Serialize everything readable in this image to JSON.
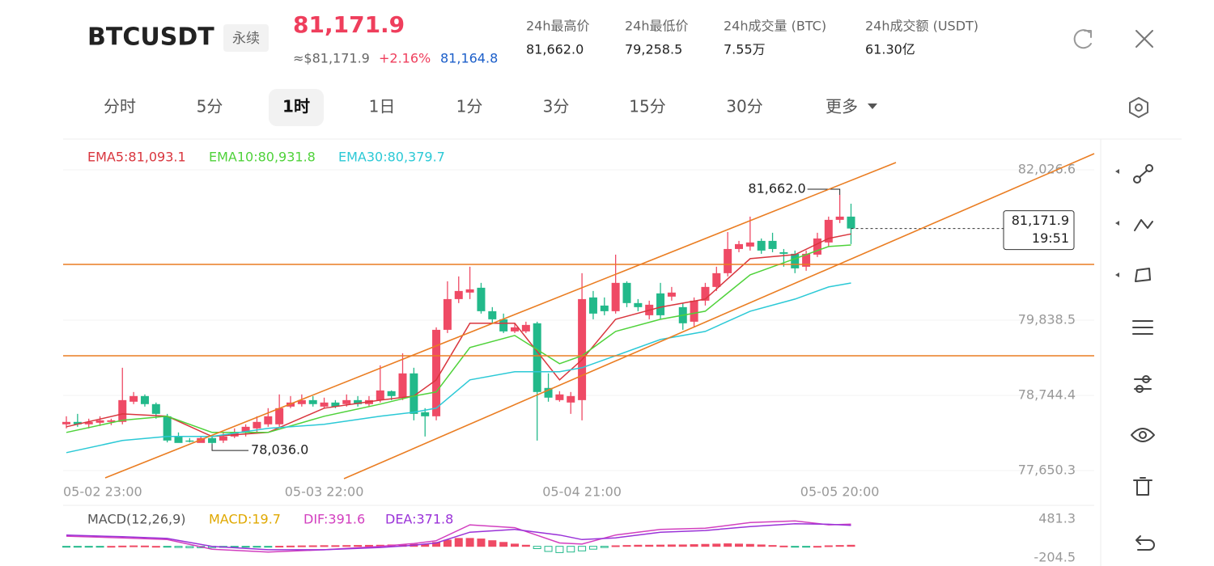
{
  "header": {
    "symbol": "BTCUSDT",
    "tag": "永续",
    "price": "81,171.9",
    "approx": "≈$81,171.9",
    "change": "+2.16%",
    "mark_price": "81,164.8",
    "stats": [
      {
        "label": "24h最高价",
        "value": "81,662.0"
      },
      {
        "label": "24h最低价",
        "value": "79,258.5"
      },
      {
        "label": "24h成交量 (BTC)",
        "value": "7.55万"
      },
      {
        "label": "24h成交额 (USDT)",
        "value": "61.30亿"
      }
    ]
  },
  "tabs": [
    {
      "label": "分时"
    },
    {
      "label": "5分"
    },
    {
      "label": "1时",
      "active": true
    },
    {
      "label": "1日"
    },
    {
      "label": "1分"
    },
    {
      "label": "3分"
    },
    {
      "label": "15分"
    },
    {
      "label": "30分"
    },
    {
      "label": "更多"
    }
  ],
  "chart_data": [
    {
      "type": "candlestick",
      "up_color": "#ef4a65",
      "down_color": "#22b98a",
      "categories": [
        "05-02 23:00",
        null,
        null,
        null,
        null,
        null,
        null,
        null,
        null,
        null,
        null,
        null,
        null,
        null,
        null,
        null,
        null,
        null,
        null,
        null,
        null,
        null,
        null,
        "05-03 22:00",
        null,
        null,
        null,
        null,
        null,
        null,
        null,
        null,
        null,
        null,
        null,
        null,
        null,
        null,
        null,
        null,
        null,
        null,
        null,
        null,
        null,
        null,
        "05-04 21:00",
        null,
        null,
        null,
        null,
        null,
        null,
        null,
        null,
        null,
        null,
        null,
        null,
        null,
        null,
        null,
        null,
        null,
        null,
        null,
        null,
        null,
        null,
        "05-05 20:00",
        null
      ],
      "open": [
        78323,
        78358,
        78323,
        78346,
        78358,
        78358,
        78652,
        78734,
        78617,
        78440,
        78146,
        78087,
        78052,
        78123,
        78087,
        78146,
        78205,
        78264,
        78323,
        78323,
        78581,
        78617,
        78675,
        78581,
        78640,
        78617,
        78675,
        78617,
        78675,
        78805,
        78711,
        79064,
        78499,
        78440,
        79698,
        80145,
        80240,
        80310,
        79969,
        79851,
        79675,
        79675,
        79793,
        78852,
        78675,
        78640,
        78675,
        80169,
        80051,
        79969,
        80381,
        80087,
        79910,
        80228,
        80181,
        80028,
        79816,
        80122,
        80322,
        80522,
        80874,
        80910,
        80992,
        80992,
        80827,
        80804,
        80616,
        80792,
        80969,
        81298,
        81345
      ],
      "high": [
        78440,
        78475,
        78405,
        78440,
        78405,
        79146,
        78793,
        78758,
        78640,
        78475,
        78205,
        78123,
        78146,
        78146,
        78205,
        78264,
        78323,
        78440,
        78558,
        78758,
        78734,
        78758,
        78734,
        78711,
        78675,
        78758,
        78734,
        78734,
        79181,
        78816,
        79357,
        79146,
        78558,
        79734,
        80404,
        80475,
        80616,
        80381,
        80028,
        79934,
        79793,
        79816,
        79816,
        79064,
        78805,
        78793,
        80522,
        80263,
        80169,
        80792,
        80404,
        80145,
        80122,
        80381,
        80322,
        80087,
        80169,
        80381,
        80616,
        81121,
        80992,
        81345,
        81027,
        81110,
        80874,
        80851,
        80851,
        81110,
        81345,
        81662,
        81533
      ],
      "low": [
        78264,
        78287,
        78264,
        78299,
        78311,
        78323,
        78617,
        78581,
        78405,
        78060,
        78060,
        78060,
        78060,
        78036,
        78052,
        78123,
        78146,
        78205,
        78287,
        78287,
        78558,
        78581,
        78581,
        78558,
        78558,
        78581,
        78581,
        78581,
        78640,
        78675,
        78675,
        78381,
        78146,
        78381,
        79651,
        80087,
        80145,
        79934,
        79793,
        79651,
        79651,
        79651,
        78087,
        78652,
        78652,
        78475,
        78381,
        79851,
        79910,
        79934,
        80028,
        79969,
        79851,
        79851,
        80122,
        79698,
        79734,
        80051,
        80263,
        80475,
        80827,
        80851,
        80804,
        80827,
        80616,
        80522,
        80557,
        80757,
        80910,
        81251,
        80945
      ],
      "close": [
        78358,
        78323,
        78358,
        78381,
        78381,
        78675,
        78734,
        78617,
        78475,
        78087,
        78052,
        78070,
        78123,
        78052,
        78146,
        78205,
        78287,
        78358,
        78440,
        78558,
        78640,
        78675,
        78617,
        78640,
        78581,
        78675,
        78617,
        78675,
        78816,
        78734,
        79064,
        78475,
        78440,
        79698,
        80145,
        80263,
        80287,
        79969,
        79851,
        79675,
        79734,
        79769,
        78793,
        78711,
        78758,
        78734,
        80145,
        79934,
        79969,
        80381,
        80087,
        80028,
        80063,
        79910,
        80240,
        79793,
        80122,
        80322,
        80522,
        80874,
        80945,
        80969,
        80851,
        80874,
        80804,
        80592,
        80804,
        81027,
        81298,
        81345,
        81171.9
      ],
      "series": [
        {
          "name": "EMA5:81,093.1",
          "color": "#d9363e",
          "x": [
            0,
            5,
            9,
            13,
            18,
            23,
            28,
            31,
            33,
            36,
            40,
            44,
            46,
            49,
            53,
            57,
            61,
            65,
            68,
            70
          ],
          "values": [
            78287,
            78475,
            78440,
            78146,
            78205,
            78558,
            78675,
            78734,
            78970,
            79793,
            79793,
            78970,
            79263,
            79851,
            80028,
            80145,
            80733,
            80792,
            81027,
            81093.1
          ]
        },
        {
          "name": "EMA10:80,931.8",
          "color": "#4fd23a",
          "x": [
            0,
            5,
            9,
            13,
            18,
            23,
            28,
            31,
            33,
            36,
            40,
            44,
            46,
            49,
            53,
            57,
            61,
            65,
            68,
            70
          ],
          "values": [
            78205,
            78381,
            78440,
            78205,
            78205,
            78440,
            78617,
            78734,
            78793,
            79440,
            79616,
            79205,
            79322,
            79675,
            79851,
            79969,
            80498,
            80733,
            80910,
            80931.8
          ]
        },
        {
          "name": "EMA30:80,379.7",
          "color": "#2bc9d6",
          "x": [
            0,
            5,
            9,
            13,
            18,
            23,
            28,
            31,
            33,
            36,
            40,
            44,
            46,
            49,
            53,
            57,
            61,
            65,
            68,
            70
          ],
          "values": [
            77911,
            78087,
            78146,
            78146,
            78264,
            78323,
            78440,
            78499,
            78558,
            78970,
            79087,
            79087,
            79146,
            79322,
            79557,
            79675,
            79969,
            80145,
            80322,
            80379.7
          ]
        }
      ],
      "ylim": [
        77438,
        82438
      ],
      "yticks": [
        {
          "value": 82026.6,
          "label": "82,026.6"
        },
        {
          "value": 79838.5,
          "label": "79,838.5"
        },
        {
          "value": 78744.4,
          "label": "78,744.4"
        },
        {
          "value": 77650.3,
          "label": "77,650.3"
        }
      ],
      "high_label": "81,662.0",
      "low_label": "78,036.0",
      "price_tag": "81,171.9",
      "countdown": "19:51",
      "grid": true
    },
    {
      "type": "macd",
      "title": "MACD(12,26,9)",
      "histogram": {
        "name": "MACD:19.7",
        "color": "#e0a800",
        "up_color": "#ef4a65",
        "down_color": "#22b98a",
        "values": [
          -10,
          -8,
          -5,
          -3,
          0,
          5,
          8,
          6,
          0,
          -10,
          -20,
          -25,
          -25,
          -22,
          -18,
          -14,
          -10,
          -6,
          -2,
          2,
          5,
          8,
          10,
          12,
          12,
          14,
          16,
          18,
          20,
          25,
          28,
          35,
          30,
          70,
          110,
          140,
          140,
          130,
          100,
          70,
          40,
          20,
          -40,
          -90,
          -110,
          -100,
          -80,
          -50,
          -20,
          10,
          15,
          20,
          20,
          22,
          25,
          25,
          30,
          35,
          40,
          45,
          40,
          35,
          25,
          15,
          5,
          -5,
          -10,
          0,
          10,
          15,
          19.7
        ]
      },
      "series": [
        {
          "name": "DIF:391.6",
          "color": "#d23fbf",
          "x": [
            0,
            5,
            9,
            13,
            18,
            23,
            28,
            31,
            33,
            36,
            40,
            44,
            46,
            49,
            53,
            57,
            61,
            65,
            68,
            70
          ],
          "values": [
            180,
            150,
            120,
            -50,
            -100,
            -60,
            0,
            50,
            100,
            380,
            330,
            60,
            40,
            200,
            300,
            320,
            420,
            450,
            380,
            391.6
          ]
        },
        {
          "name": "DEA:371.8",
          "color": "#9a32d8",
          "x": [
            0,
            5,
            9,
            13,
            18,
            23,
            28,
            31,
            33,
            36,
            40,
            44,
            46,
            49,
            53,
            57,
            61,
            65,
            68,
            70
          ],
          "values": [
            200,
            170,
            140,
            0,
            -60,
            -60,
            -20,
            20,
            60,
            250,
            300,
            200,
            120,
            150,
            250,
            280,
            350,
            400,
            390,
            371.8
          ]
        }
      ],
      "ylim": [
        -204.5,
        481.3
      ],
      "yticks": [
        {
          "value": 481.3,
          "label": "481.3"
        },
        {
          "value": -204.5,
          "label": "-204.5"
        }
      ]
    }
  ]
}
